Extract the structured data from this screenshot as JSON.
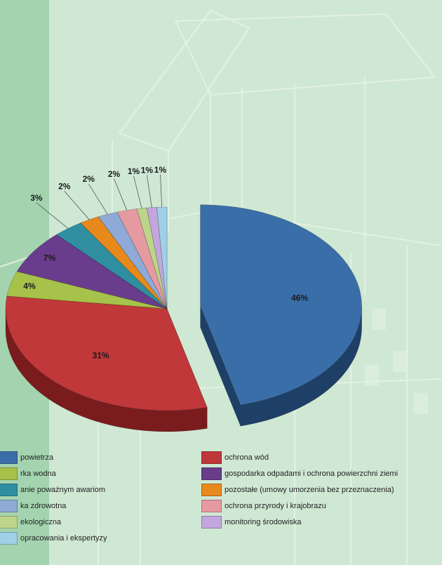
{
  "chart_data": {
    "type": "pie",
    "slices": [
      {
        "label": "46%",
        "value": 46,
        "color": "#3a6ea8",
        "dark": "#1e3f66"
      },
      {
        "label": "31%",
        "value": 31,
        "color": "#c0383a",
        "dark": "#7a1c1e"
      },
      {
        "label": "4%",
        "value": 4,
        "color": "#a6c24a",
        "dark": "#5f7226"
      },
      {
        "label": "7%",
        "value": 7,
        "color": "#6a3c8c",
        "dark": "#3e2053"
      },
      {
        "label": "3%",
        "value": 3,
        "color": "#2f8fa0",
        "dark": "#1a5561"
      },
      {
        "label": "2%",
        "value": 2,
        "color": "#e8891c",
        "dark": "#8f4f0b"
      },
      {
        "label": "2%",
        "value": 2,
        "color": "#8faad6",
        "dark": "#52688d"
      },
      {
        "label": "2%",
        "value": 2,
        "color": "#e59aa2",
        "dark": "#9b5c63"
      },
      {
        "label": "1%",
        "value": 1,
        "color": "#bcd58a",
        "dark": "#7a8f52"
      },
      {
        "label": "1%",
        "value": 1,
        "color": "#c3a6dc",
        "dark": "#7d6495"
      },
      {
        "label": "1%",
        "value": 1,
        "color": "#9fd0e6",
        "dark": "#5c8ea4"
      }
    ],
    "legend_left": [
      {
        "text": "powietrza",
        "color": "#3a6ea8"
      },
      {
        "text": "rka wodna",
        "color": "#a6c24a"
      },
      {
        "text": "anie poważnym awariom",
        "color": "#2f8fa0"
      },
      {
        "text": "ka zdrowotna",
        "color": "#8faad6"
      },
      {
        "text": "ekologiczna",
        "color": "#bcd58a"
      },
      {
        "text": "opracowania i ekspertyzy",
        "color": "#9fd0e6"
      }
    ],
    "legend_right": [
      {
        "text": "ochrona wód",
        "color": "#c0383a"
      },
      {
        "text": "gospodarka odpadami i ochrona powierzchni ziemi",
        "color": "#6a3c8c"
      },
      {
        "text": "pozostałe (umowy umorzenia bez przeznaczenia)",
        "color": "#e8891c"
      },
      {
        "text": "ochrona przyrody i krajobrazu",
        "color": "#e59aa2"
      },
      {
        "text": "monitoring środowiska",
        "color": "#c3a6dc"
      }
    ]
  }
}
